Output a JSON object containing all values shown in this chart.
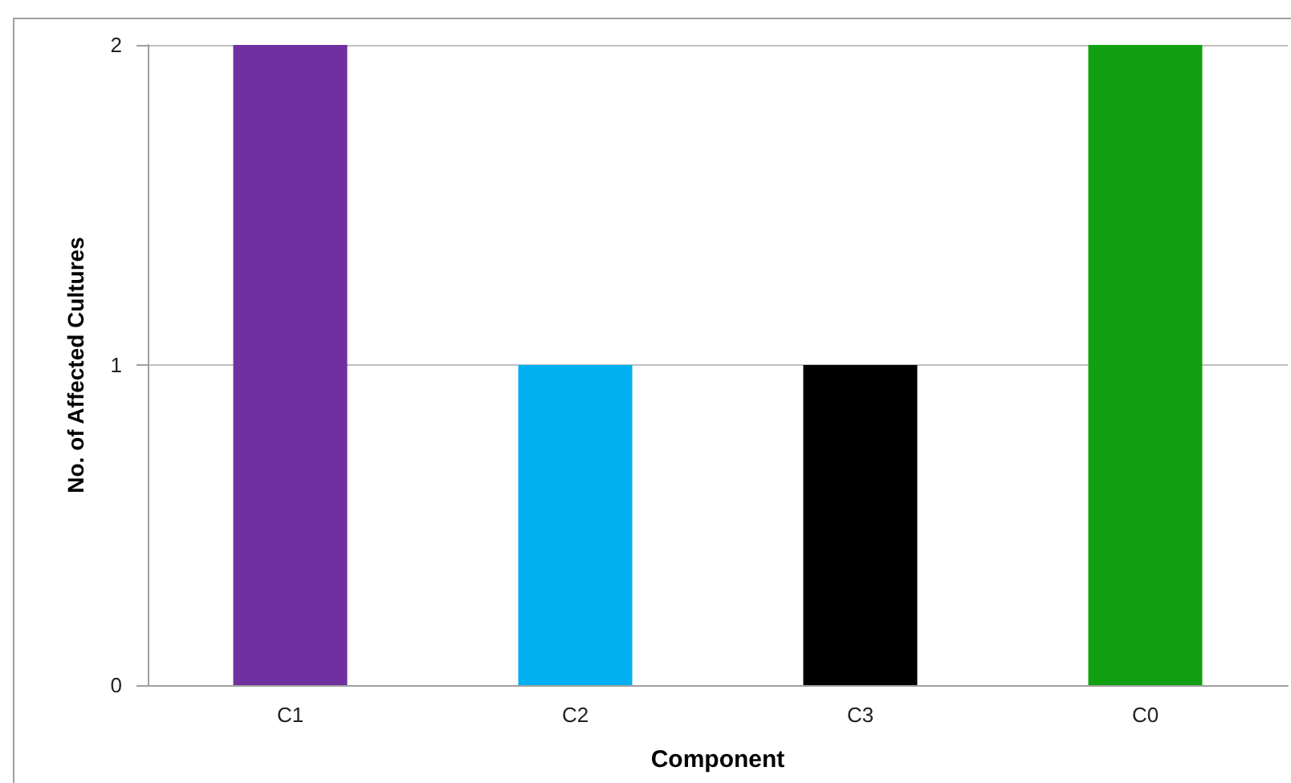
{
  "chart_data": {
    "type": "bar",
    "xlabel": "Component",
    "ylabel": "No. of Affected Cultures",
    "categories": [
      "C1",
      "C2",
      "C3",
      "C0"
    ],
    "values": [
      2,
      1,
      1,
      2
    ],
    "colors": [
      "#7030a0",
      "#00b0f0",
      "#000000",
      "#11a011"
    ],
    "ylim": [
      0,
      2
    ],
    "yticks": [
      0,
      1,
      2
    ],
    "grid": "y"
  }
}
